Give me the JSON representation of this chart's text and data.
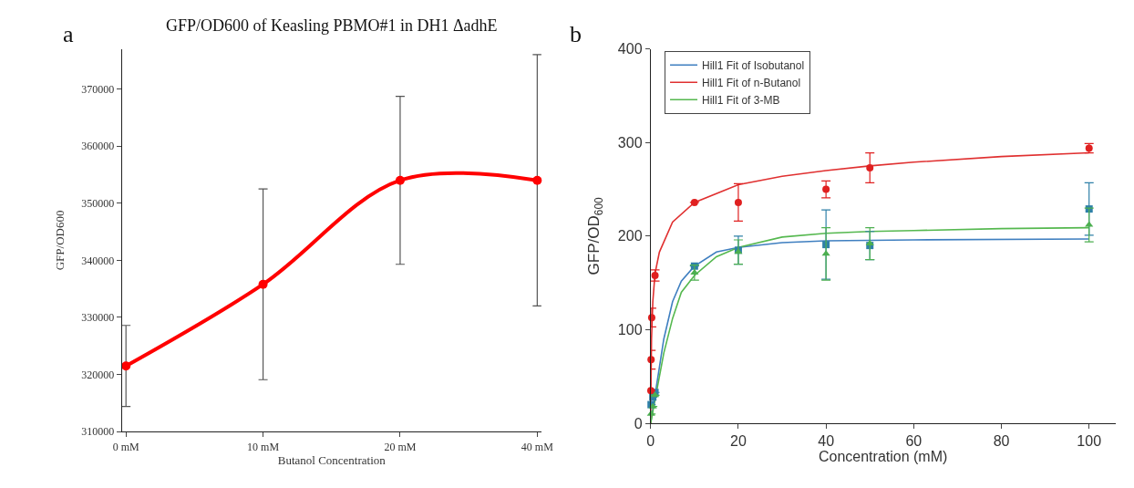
{
  "chart_data": [
    {
      "type": "line",
      "title": "GFP/OD600 of Keasling PBMO#1 in DH1 ΔadhE",
      "xlabel": "Butanol Concentration",
      "ylabel": "GFP/OD600",
      "annotations": [
        "a"
      ],
      "categories": [
        "0 mM",
        "10 mM",
        "20 mM",
        "40 mM"
      ],
      "series": [
        {
          "color": "#ff0000",
          "values": [
            321500,
            335800,
            354000,
            354000
          ],
          "errors": [
            7100,
            16700,
            14700,
            22000
          ]
        }
      ],
      "ylim": [
        310000,
        377000
      ],
      "yticks": [
        310000,
        320000,
        330000,
        340000,
        350000,
        360000,
        370000
      ],
      "marker": "circle",
      "line_style": "solid",
      "legend": false
    },
    {
      "type": "scatter",
      "xlabel": "Concentration (mM)",
      "ylabel": "GFP/OD$_{600}$",
      "annotations": [
        "b"
      ],
      "series": [
        {
          "type": "line",
          "name": "Hill1 Fit of Isobutanol",
          "color": "#3f7fc0",
          "marker": "none",
          "x": [
            0,
            1,
            2,
            3,
            5,
            7,
            10,
            15,
            20,
            30,
            40,
            60,
            100
          ],
          "values": [
            0,
            30,
            60,
            90,
            130,
            152,
            168,
            183,
            188,
            193,
            195,
            196,
            197
          ]
        },
        {
          "type": "line",
          "name": "Hill1 Fit of n-Butanol",
          "color": "#e03030",
          "marker": "none",
          "x": [
            0,
            0.2,
            0.5,
            1,
            2,
            5,
            10,
            20,
            30,
            40,
            50,
            60,
            80,
            100
          ],
          "values": [
            0,
            90,
            130,
            160,
            183,
            215,
            236,
            255,
            264,
            270,
            275,
            279,
            285,
            289
          ]
        },
        {
          "type": "line",
          "name": "Hill1 Fit of 3-MB",
          "color": "#55b84f",
          "marker": "none",
          "x": [
            0,
            1,
            2,
            3,
            5,
            7,
            10,
            15,
            20,
            30,
            40,
            50,
            60,
            80,
            100
          ],
          "values": [
            0,
            25,
            50,
            75,
            112,
            140,
            158,
            178,
            188,
            199,
            203,
            205,
            206,
            208,
            209
          ]
        },
        {
          "type": "scatter",
          "color": "#2f80a8",
          "marker": "square",
          "x": [
            0.1,
            0.5,
            1,
            10,
            20,
            40,
            50,
            100
          ],
          "values": [
            20,
            28,
            33,
            168,
            185,
            191,
            190,
            229
          ],
          "errors": [
            null,
            null,
            null,
            null,
            15,
            37,
            15,
            28
          ]
        },
        {
          "type": "scatter",
          "color": "#e02020",
          "marker": "circle",
          "x": [
            0.05,
            0.1,
            0.25,
            1,
            10,
            20,
            40,
            50,
            100
          ],
          "values": [
            35,
            68,
            113,
            158,
            236,
            236,
            250,
            273,
            294
          ],
          "errors": [
            null,
            10,
            10,
            6,
            null,
            20,
            9,
            16,
            5
          ]
        },
        {
          "type": "scatter",
          "color": "#4caf50",
          "marker": "triangle",
          "x": [
            0.1,
            0.5,
            1,
            10,
            20,
            40,
            50,
            100
          ],
          "values": [
            10,
            18,
            30,
            161,
            183,
            181,
            192,
            212
          ],
          "errors": [
            null,
            null,
            null,
            8,
            13,
            28,
            17,
            18
          ]
        }
      ],
      "xlim": [
        0,
        106
      ],
      "xticks": [
        0,
        20,
        40,
        60,
        80,
        100
      ],
      "ylim": [
        0,
        400
      ],
      "yticks": [
        0,
        100,
        200,
        300,
        400
      ],
      "legend": "top left"
    }
  ]
}
